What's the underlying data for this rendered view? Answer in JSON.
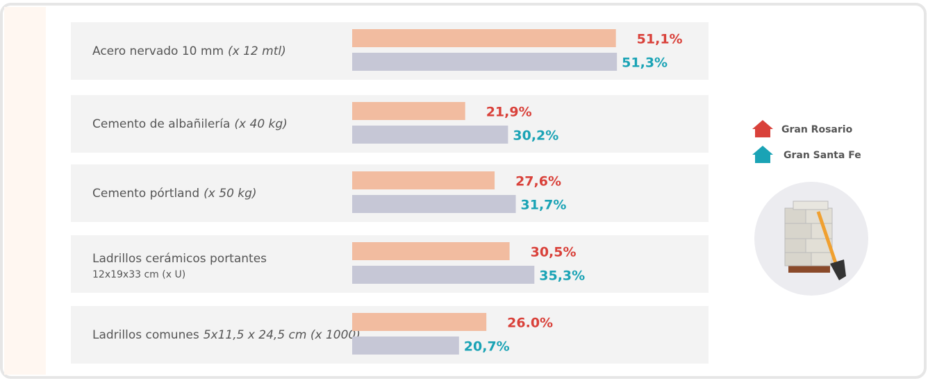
{
  "chart_data": {
    "type": "bar",
    "orientation": "horizontal",
    "categories": [
      "Acero nervado 10 mm",
      "Cemento de albañilería",
      "Cemento pórtland",
      "Ladrillos cerámicos portantes",
      "Ladrillos comunes"
    ],
    "category_sublabels": [
      "(x 12 mtl)",
      "(x 40 kg)",
      "(x 50 kg)",
      "12x19x33 cm (x U)",
      "5x11,5 x 24,5 cm (x 1000)"
    ],
    "series": [
      {
        "name": "Gran Rosario",
        "color": "#f2bca0",
        "label_color": "#d9413a",
        "values": [
          51.1,
          21.9,
          27.6,
          30.5,
          26.0
        ],
        "value_labels": [
          "51,1%",
          "21,9%",
          "27,6%",
          "30,5%",
          "26.0%"
        ]
      },
      {
        "name": "Gran Santa Fe",
        "color": "#c6c7d6",
        "label_color": "#1aa3b5",
        "values": [
          51.3,
          30.2,
          31.7,
          35.3,
          20.7
        ],
        "value_labels": [
          "51,3%",
          "30,2%",
          "31,7%",
          "35,3%",
          "20,7%"
        ]
      }
    ]
  }
}
